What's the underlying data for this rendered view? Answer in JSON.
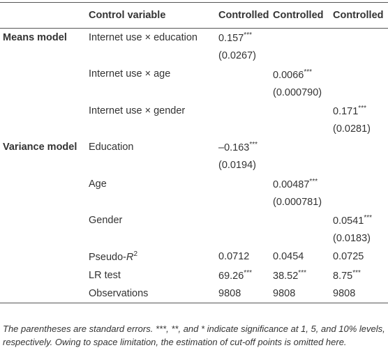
{
  "table": {
    "header": [
      "Control variable",
      "Controlled",
      "Controlled",
      "Controlled"
    ],
    "rows": [
      [
        "Means model",
        "Internet use × education",
        {
          "value": "0.157",
          "sup": "***"
        },
        null,
        null
      ],
      [
        null,
        null,
        "(0.0267)",
        null,
        null
      ],
      [
        null,
        "Internet use × age",
        null,
        {
          "value": "0.0066",
          "sup": "***"
        },
        null
      ],
      [
        null,
        null,
        null,
        "(0.000790)",
        null
      ],
      [
        null,
        "Internet use × gender",
        null,
        null,
        {
          "value": "0.171",
          "sup": "***"
        }
      ],
      [
        null,
        null,
        null,
        null,
        "(0.0281)"
      ],
      [
        "Variance model",
        "Education",
        {
          "value": "–0.163",
          "sup": "***"
        },
        null,
        null
      ],
      [
        null,
        null,
        "(0.0194)",
        null,
        null
      ],
      [
        null,
        "Age",
        null,
        {
          "value": "0.00487",
          "sup": "***"
        },
        null
      ],
      [
        null,
        null,
        null,
        "(0.000781)",
        null
      ],
      [
        null,
        "Gender",
        null,
        null,
        {
          "value": "0.0541",
          "sup": "***"
        }
      ],
      [
        null,
        null,
        null,
        null,
        "(0.0183)"
      ],
      [
        null,
        {
          "value": "Pseudo-",
          "italic": "R",
          "sup": "2"
        },
        "0.0712",
        "0.0454",
        "0.0725"
      ],
      [
        null,
        "LR test",
        {
          "value": "69.26",
          "sup": "***"
        },
        {
          "value": "38.52",
          "sup": "***"
        },
        {
          "value": "8.75",
          "sup": "***"
        }
      ],
      [
        null,
        "Observations",
        "9808",
        "9808",
        "9808"
      ]
    ]
  },
  "footnote": "The parentheses are standard errors. ***, **, and * indicate significance at 1, 5, and 10% levels, respectively. Owing to space limitation, the estimation of cut-off points is omitted here."
}
